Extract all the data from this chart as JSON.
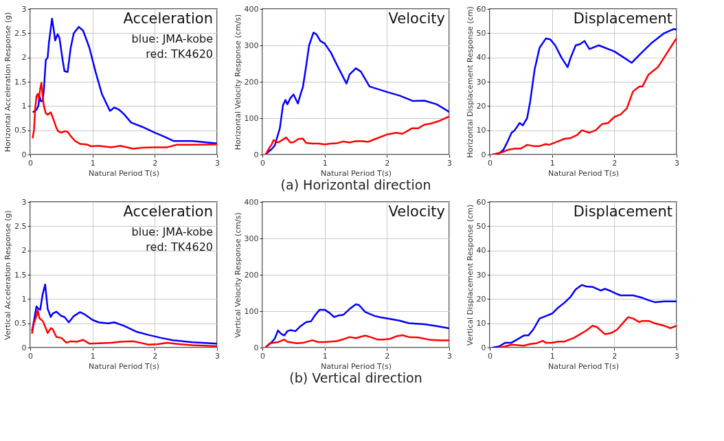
{
  "chart_data": [
    {
      "type": "line",
      "xlabel": "Natural Period T(s)",
      "ylabel": "Horizontal Acceleration Response (g)",
      "xlim": [
        0,
        3
      ],
      "ylim": [
        0,
        3
      ],
      "xticks": [
        0,
        1,
        2,
        3
      ],
      "yticks": [
        0,
        0.5,
        1,
        1.5,
        2,
        2.5,
        3
      ],
      "grid": true,
      "line_style": "solid",
      "annotations": [
        "Acceleration",
        "blue: JMA-kobe",
        "red: TK4620"
      ],
      "series": [
        {
          "color": "#0000ff",
          "x": [
            0.05,
            0.1,
            0.13,
            0.15,
            0.17,
            0.2,
            0.22,
            0.25,
            0.28,
            0.3,
            0.35,
            0.38,
            0.4,
            0.44,
            0.47,
            0.52,
            0.55,
            0.6,
            0.65,
            0.7,
            0.78,
            0.85,
            0.95,
            1.05,
            1.15,
            1.28,
            1.35,
            1.42,
            1.5,
            1.62,
            1.8,
            2.0,
            2.15,
            2.3,
            2.6,
            3.0
          ],
          "values": [
            0.88,
            0.92,
            1.0,
            1.2,
            1.1,
            1.1,
            1.35,
            1.95,
            2.0,
            2.3,
            2.8,
            2.55,
            2.35,
            2.48,
            2.4,
            1.95,
            1.72,
            1.7,
            2.2,
            2.5,
            2.63,
            2.55,
            2.2,
            1.7,
            1.25,
            0.9,
            0.97,
            0.93,
            0.84,
            0.66,
            0.57,
            0.45,
            0.37,
            0.28,
            0.28,
            0.23
          ]
        },
        {
          "color": "#ff0000",
          "x": [
            0.04,
            0.06,
            0.08,
            0.1,
            0.12,
            0.14,
            0.16,
            0.18,
            0.2,
            0.22,
            0.25,
            0.28,
            0.33,
            0.38,
            0.42,
            0.45,
            0.5,
            0.55,
            0.6,
            0.65,
            0.72,
            0.8,
            0.9,
            0.98,
            1.1,
            1.3,
            1.45,
            1.65,
            1.8,
            2.0,
            2.2,
            2.35,
            2.6,
            3.0
          ],
          "values": [
            0.35,
            0.5,
            0.95,
            1.2,
            1.25,
            1.15,
            1.35,
            1.48,
            1.2,
            1.0,
            0.85,
            0.82,
            0.87,
            0.7,
            0.55,
            0.48,
            0.45,
            0.48,
            0.47,
            0.38,
            0.28,
            0.22,
            0.21,
            0.17,
            0.18,
            0.15,
            0.18,
            0.12,
            0.14,
            0.15,
            0.15,
            0.2,
            0.2,
            0.21
          ]
        }
      ]
    },
    {
      "type": "line",
      "title": "(a) Horizontal direction",
      "xlabel": "Natural Period T(s)",
      "ylabel": "Horizontal Velocity Response (cm/s)",
      "xlim": [
        0,
        3
      ],
      "ylim": [
        0,
        400
      ],
      "xticks": [
        0,
        1,
        2,
        3
      ],
      "yticks": [
        0,
        100,
        200,
        300,
        400
      ],
      "grid": true,
      "line_style": "solid",
      "annotations": [
        "Velocity"
      ],
      "series": [
        {
          "color": "#0000ff",
          "x": [
            0.05,
            0.1,
            0.15,
            0.2,
            0.25,
            0.28,
            0.33,
            0.37,
            0.4,
            0.45,
            0.5,
            0.57,
            0.62,
            0.65,
            0.7,
            0.75,
            0.82,
            0.87,
            0.93,
            1.0,
            1.1,
            1.2,
            1.35,
            1.4,
            1.5,
            1.58,
            1.72,
            2.0,
            2.2,
            2.42,
            2.6,
            2.8,
            3.0
          ],
          "values": [
            0,
            8,
            15,
            25,
            55,
            72,
            135,
            150,
            138,
            155,
            165,
            140,
            170,
            185,
            240,
            300,
            335,
            330,
            312,
            305,
            280,
            245,
            195,
            220,
            237,
            228,
            187,
            172,
            162,
            147,
            148,
            138,
            117
          ]
        },
        {
          "color": "#ff0000",
          "x": [
            0.05,
            0.1,
            0.15,
            0.18,
            0.25,
            0.3,
            0.38,
            0.45,
            0.5,
            0.58,
            0.65,
            0.7,
            0.8,
            0.9,
            1.0,
            1.1,
            1.2,
            1.3,
            1.4,
            1.5,
            1.6,
            1.7,
            1.8,
            2.0,
            2.15,
            2.25,
            2.4,
            2.5,
            2.6,
            2.7,
            2.85,
            3.0
          ],
          "values": [
            0,
            15,
            28,
            40,
            33,
            38,
            47,
            33,
            34,
            43,
            44,
            32,
            30,
            30,
            28,
            30,
            31,
            36,
            33,
            37,
            37,
            35,
            42,
            55,
            60,
            57,
            72,
            72,
            82,
            85,
            93,
            105
          ]
        }
      ]
    },
    {
      "type": "line",
      "xlabel": "Natural Period T(s)",
      "ylabel": "Horizontal Displacement Response (cm)",
      "xlim": [
        0,
        3
      ],
      "ylim": [
        0,
        60
      ],
      "xticks": [
        0,
        1,
        2,
        3
      ],
      "yticks": [
        0,
        10,
        20,
        30,
        40,
        50,
        60
      ],
      "grid": true,
      "line_style": "solid",
      "annotations": [
        "Displacement"
      ],
      "series": [
        {
          "color": "#0000ff",
          "x": [
            0.05,
            0.15,
            0.22,
            0.28,
            0.35,
            0.4,
            0.48,
            0.53,
            0.6,
            0.65,
            0.72,
            0.8,
            0.9,
            0.97,
            1.05,
            1.15,
            1.25,
            1.3,
            1.38,
            1.45,
            1.52,
            1.6,
            1.75,
            2.0,
            2.15,
            2.28,
            2.4,
            2.6,
            2.8,
            2.95,
            3.0
          ],
          "values": [
            0,
            0.5,
            2,
            5,
            9,
            10,
            13,
            12,
            15,
            22,
            35,
            44,
            47.8,
            47.5,
            45,
            40,
            36,
            40,
            45,
            45.5,
            46.8,
            43.5,
            45,
            42.5,
            40,
            37.8,
            41,
            46,
            50,
            51.7,
            51.5
          ]
        },
        {
          "color": "#ff0000",
          "x": [
            0.05,
            0.2,
            0.3,
            0.4,
            0.5,
            0.6,
            0.7,
            0.8,
            0.9,
            0.95,
            1.0,
            1.1,
            1.2,
            1.3,
            1.4,
            1.48,
            1.6,
            1.7,
            1.8,
            1.9,
            2.0,
            2.1,
            2.2,
            2.3,
            2.4,
            2.45,
            2.55,
            2.7,
            2.8,
            2.9,
            3.0
          ],
          "values": [
            0,
            1,
            2,
            2.5,
            2.5,
            4,
            3.5,
            3.5,
            4.3,
            4,
            4.5,
            5.5,
            6.5,
            6.8,
            8,
            10,
            9,
            10,
            12.5,
            13,
            15.5,
            16.5,
            19,
            26,
            28,
            28,
            33,
            36,
            40,
            44,
            48
          ]
        }
      ]
    },
    {
      "type": "line",
      "xlabel": "Natural Period T(s)",
      "ylabel": "Vertical Acceleration Response (g)",
      "xlim": [
        0,
        3
      ],
      "ylim": [
        0,
        3
      ],
      "xticks": [
        0,
        1,
        2,
        3
      ],
      "yticks": [
        0,
        0.5,
        1,
        1.5,
        2,
        2.5,
        3
      ],
      "grid": true,
      "line_style": "solid",
      "annotations": [
        "Acceleration",
        "blue: JMA-kobe",
        "red: TK4620"
      ],
      "series": [
        {
          "color": "#0000ff",
          "x": [
            0.03,
            0.06,
            0.08,
            0.1,
            0.13,
            0.16,
            0.2,
            0.24,
            0.28,
            0.33,
            0.36,
            0.42,
            0.5,
            0.55,
            0.62,
            0.7,
            0.8,
            0.88,
            1.0,
            1.1,
            1.25,
            1.35,
            1.5,
            1.7,
            1.9,
            2.1,
            2.3,
            2.6,
            3.0
          ],
          "values": [
            0.35,
            0.55,
            0.7,
            0.85,
            0.8,
            0.78,
            1.1,
            1.3,
            0.8,
            0.63,
            0.7,
            0.74,
            0.65,
            0.63,
            0.52,
            0.65,
            0.73,
            0.68,
            0.57,
            0.52,
            0.5,
            0.52,
            0.45,
            0.33,
            0.26,
            0.2,
            0.15,
            0.11,
            0.08
          ]
        },
        {
          "color": "#ff0000",
          "x": [
            0.03,
            0.06,
            0.1,
            0.12,
            0.15,
            0.2,
            0.25,
            0.28,
            0.33,
            0.36,
            0.42,
            0.5,
            0.58,
            0.65,
            0.75,
            0.85,
            0.95,
            1.1,
            1.3,
            1.45,
            1.65,
            1.8,
            1.9,
            2.05,
            2.2,
            2.4,
            2.6,
            3.0
          ],
          "values": [
            0.3,
            0.5,
            0.65,
            0.77,
            0.6,
            0.55,
            0.4,
            0.3,
            0.4,
            0.38,
            0.22,
            0.2,
            0.1,
            0.13,
            0.12,
            0.16,
            0.08,
            0.09,
            0.1,
            0.12,
            0.13,
            0.09,
            0.06,
            0.07,
            0.1,
            0.07,
            0.05,
            0.03
          ]
        }
      ]
    },
    {
      "type": "line",
      "title": "(b) Vertical direction",
      "xlabel": "Natural Period T(s)",
      "ylabel": "Vertical Velocity Response (cm/s)",
      "xlim": [
        0,
        3
      ],
      "ylim": [
        0,
        400
      ],
      "xticks": [
        0,
        1,
        2,
        3
      ],
      "yticks": [
        0,
        100,
        200,
        300,
        400
      ],
      "grid": true,
      "line_style": "solid",
      "annotations": [
        "Velocity"
      ],
      "series": [
        {
          "color": "#0000ff",
          "x": [
            0.05,
            0.15,
            0.2,
            0.25,
            0.3,
            0.35,
            0.4,
            0.45,
            0.53,
            0.6,
            0.7,
            0.78,
            0.85,
            0.92,
            1.0,
            1.08,
            1.15,
            1.22,
            1.3,
            1.4,
            1.5,
            1.55,
            1.65,
            1.8,
            1.9,
            2.0,
            2.2,
            2.35,
            2.6,
            2.8,
            3.0
          ],
          "values": [
            0,
            15,
            25,
            47,
            38,
            33,
            45,
            48,
            45,
            57,
            70,
            72,
            90,
            104,
            104,
            95,
            84,
            88,
            90,
            106,
            119,
            117,
            98,
            87,
            83,
            80,
            74,
            67,
            64,
            59,
            53
          ]
        },
        {
          "color": "#ff0000",
          "x": [
            0.05,
            0.12,
            0.25,
            0.35,
            0.4,
            0.55,
            0.65,
            0.8,
            0.9,
            1.0,
            1.2,
            1.3,
            1.4,
            1.5,
            1.65,
            1.75,
            1.85,
            1.95,
            2.05,
            2.15,
            2.25,
            2.35,
            2.5,
            2.7,
            2.85,
            3.0
          ],
          "values": [
            0,
            12,
            15,
            22,
            16,
            12,
            13,
            20,
            15,
            15,
            18,
            23,
            29,
            26,
            33,
            28,
            22,
            22,
            24,
            31,
            34,
            29,
            28,
            21,
            20,
            20
          ]
        }
      ]
    },
    {
      "type": "line",
      "xlabel": "Natural Period T(s)",
      "ylabel": "Vertical Displacement Response (cm)",
      "xlim": [
        0,
        3
      ],
      "ylim": [
        0,
        60
      ],
      "xticks": [
        0,
        1,
        2,
        3
      ],
      "yticks": [
        0,
        10,
        20,
        30,
        40,
        50,
        60
      ],
      "grid": true,
      "line_style": "solid",
      "annotations": [
        "Displacement"
      ],
      "series": [
        {
          "color": "#0000ff",
          "x": [
            0.05,
            0.15,
            0.25,
            0.35,
            0.45,
            0.55,
            0.62,
            0.7,
            0.8,
            0.9,
            1.0,
            1.1,
            1.2,
            1.3,
            1.38,
            1.48,
            1.55,
            1.65,
            1.78,
            1.85,
            1.95,
            2.05,
            2.1,
            2.3,
            2.45,
            2.55,
            2.65,
            2.8,
            3.0
          ],
          "values": [
            0,
            0.5,
            2,
            2,
            3.5,
            5,
            5,
            7.5,
            12,
            13,
            14,
            16.5,
            18.5,
            21,
            24,
            25.8,
            25.2,
            25,
            23.5,
            24.2,
            23.2,
            22,
            21.5,
            21.5,
            20.5,
            19.5,
            18.7,
            19,
            19
          ]
        },
        {
          "color": "#ff0000",
          "x": [
            0.15,
            0.25,
            0.35,
            0.45,
            0.55,
            0.65,
            0.75,
            0.85,
            0.9,
            1.0,
            1.1,
            1.2,
            1.35,
            1.45,
            1.55,
            1.65,
            1.72,
            1.85,
            1.95,
            2.05,
            2.15,
            2.22,
            2.3,
            2.4,
            2.45,
            2.55,
            2.65,
            2.8,
            2.9,
            3.0
          ],
          "values": [
            0,
            0.5,
            1.2,
            1,
            0.8,
            1.5,
            1.8,
            2.8,
            2,
            2,
            2.5,
            2.5,
            4,
            5.5,
            7,
            9,
            8.5,
            5.5,
            6,
            7.5,
            10.5,
            12.5,
            12,
            10.5,
            11,
            11,
            10,
            9,
            8,
            9
          ]
        }
      ]
    }
  ]
}
